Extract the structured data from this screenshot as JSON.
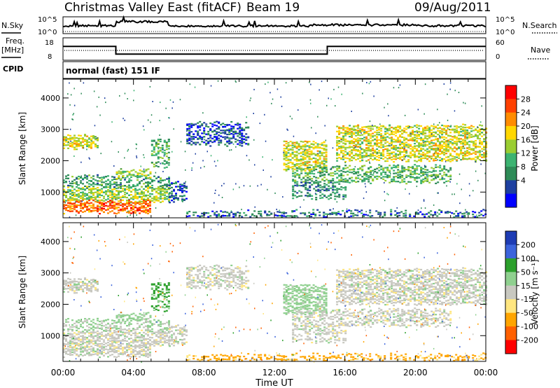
{
  "header": {
    "title": "Christmas Valley East (fitACF)",
    "beam": "Beam 19",
    "date": "09/Aug/2011"
  },
  "top_panels": {
    "nsky_label": "N.Sky",
    "nsearch_label": "N.Search",
    "noise_ticks": [
      "10^5",
      "10^0"
    ],
    "freq_label_1": "Freq.",
    "freq_label_2": "[MHz]",
    "freq_ticks": [
      "18",
      "8"
    ],
    "nave_label": "Nave",
    "nave_ticks": [
      "60",
      "0"
    ],
    "cpid_label": "CPID",
    "cpid_text": "normal (fast) 151 IF"
  },
  "axes": {
    "xlabel": "Time UT",
    "ylabel": "Slant Range [km]",
    "x_ticks": [
      "00:00",
      "04:00",
      "08:00",
      "12:00",
      "16:00",
      "20:00",
      "00:00"
    ],
    "y_ticks": [
      "1000",
      "2000",
      "3000",
      "4000"
    ]
  },
  "power_scale": {
    "label": "Power [dB]",
    "ticks": [
      "28",
      "24",
      "20",
      "16",
      "12",
      "8",
      "4"
    ],
    "colors": [
      "#ff0000",
      "#ff4000",
      "#ff8c00",
      "#ffd700",
      "#9acd32",
      "#3cb371",
      "#2e8b57",
      "#1e40a0",
      "#0000ff"
    ]
  },
  "velocity_scale": {
    "label": "Velocity [m s⁻¹]",
    "ticks": [
      "200",
      "100",
      "50",
      "15",
      "-15",
      "-50",
      "-100",
      "-200"
    ],
    "colors": [
      "#1e3cb4",
      "#3c64dc",
      "#2ca02c",
      "#8fd08f",
      "#c8c8c0",
      "#ffe680",
      "#ffa500",
      "#ff6000",
      "#ff0000"
    ]
  },
  "chart_data": {
    "type": "heatmap",
    "x_range_hours": [
      0,
      24
    ],
    "y_range_km": [
      180,
      4600
    ],
    "frequency_mhz": [
      {
        "from_h": 0,
        "to_h": 3,
        "value": 14.6
      },
      {
        "from_h": 3,
        "to_h": 15,
        "value": 10.0
      },
      {
        "from_h": 15,
        "to_h": 24,
        "value": 14.6
      }
    ],
    "echo_regions": [
      {
        "t0": 0.0,
        "t1": 2.0,
        "r0": 2400,
        "r1": 2800,
        "p": 18,
        "v": 0,
        "d": 0.8
      },
      {
        "t0": 0.0,
        "t1": 6.0,
        "r0": 700,
        "r1": 1150,
        "p": 16,
        "v": 0,
        "d": 0.75
      },
      {
        "t0": 0.0,
        "t1": 5.0,
        "r0": 350,
        "r1": 700,
        "p": 26,
        "v": 0,
        "d": 0.85
      },
      {
        "t0": 0.0,
        "t1": 6.0,
        "r0": 1150,
        "r1": 1500,
        "p": 10,
        "v": 20,
        "d": 0.55
      },
      {
        "t0": 3.0,
        "t1": 5.0,
        "r0": 1450,
        "r1": 1700,
        "p": 15,
        "v": 30,
        "d": 0.6
      },
      {
        "t0": 5.0,
        "t1": 6.0,
        "r0": 1800,
        "r1": 2700,
        "p": 12,
        "v": 60,
        "d": 0.5
      },
      {
        "t0": 6.0,
        "t1": 7.0,
        "r0": 700,
        "r1": 1300,
        "p": 6,
        "v": 0,
        "d": 0.6
      },
      {
        "t0": 7.0,
        "t1": 10.5,
        "r0": 2500,
        "r1": 3200,
        "p": 5,
        "v": 0,
        "d": 0.55
      },
      {
        "t0": 12.5,
        "t1": 15.0,
        "r0": 1700,
        "r1": 2600,
        "p": 18,
        "v": 30,
        "d": 0.75
      },
      {
        "t0": 13.0,
        "t1": 22.0,
        "r0": 1300,
        "r1": 1800,
        "p": 12,
        "v": 0,
        "d": 0.5
      },
      {
        "t0": 13.0,
        "t1": 16.0,
        "r0": 800,
        "r1": 1300,
        "p": 8,
        "v": 0,
        "d": 0.45
      },
      {
        "t0": 15.5,
        "t1": 24.0,
        "r0": 2000,
        "r1": 3100,
        "p": 18,
        "v": 0,
        "d": 0.7
      },
      {
        "t0": 7.0,
        "t1": 24.0,
        "r0": 180,
        "r1": 400,
        "p": 6,
        "v": -60,
        "d": 0.4
      }
    ]
  }
}
